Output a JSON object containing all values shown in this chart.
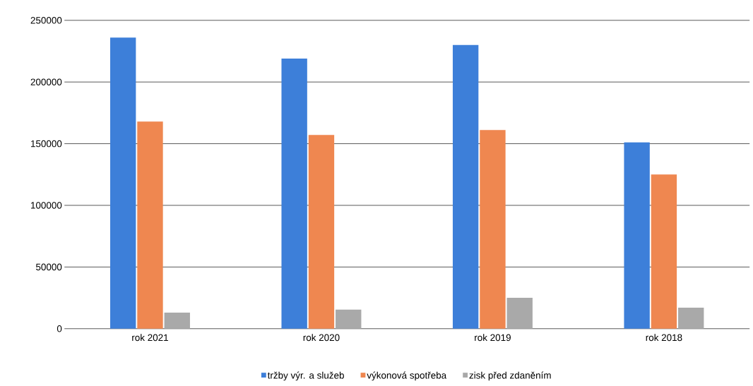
{
  "chart_data": {
    "type": "bar",
    "categories": [
      "rok 2021",
      "rok 2020",
      "rok 2019",
      "rok 2018"
    ],
    "series": [
      {
        "name": "tržby výr. a služeb",
        "color": "#3d7fd9",
        "values": [
          236000,
          219000,
          230000,
          151000
        ]
      },
      {
        "name": "výkonová spotřeba",
        "color": "#ef8750",
        "values": [
          168000,
          157000,
          161000,
          125000
        ]
      },
      {
        "name": "zisk před zdaněním",
        "color": "#a9a9a9",
        "values": [
          13000,
          15500,
          25000,
          17000
        ]
      }
    ],
    "ylim": [
      0,
      250000
    ],
    "yticks": [
      0,
      50000,
      100000,
      150000,
      200000,
      250000
    ],
    "grid": "y",
    "legend": "bottom"
  }
}
